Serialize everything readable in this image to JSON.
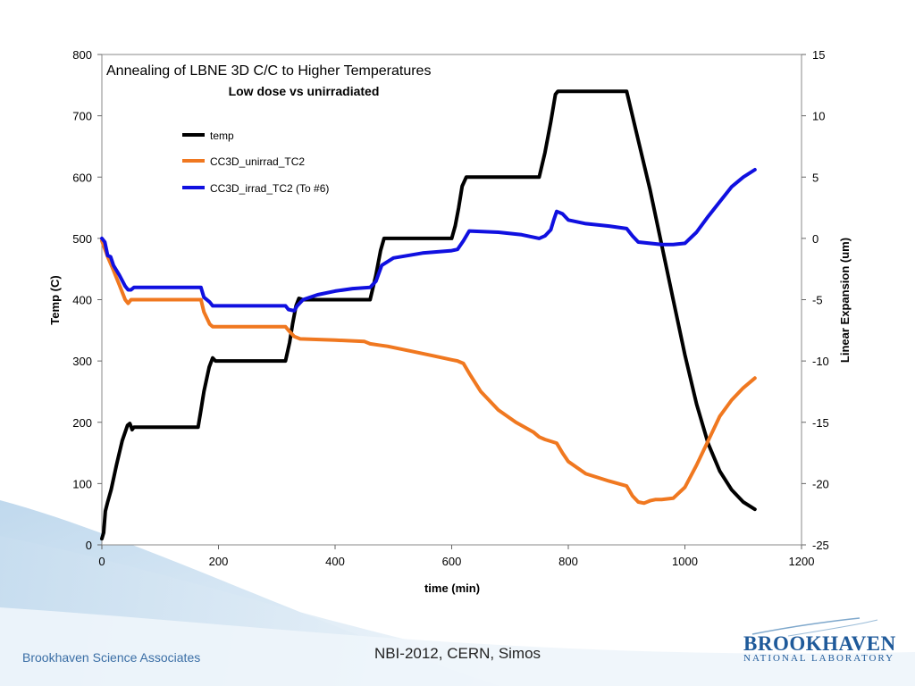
{
  "footer": {
    "left_text": "Brookhaven Science Associates",
    "center_text": "NBI-2012, CERN, Simos",
    "logo_main": "BROOKHAVEN",
    "logo_sub": "NATIONAL LABORATORY"
  },
  "colors": {
    "background_swoosh": "#cfe3f2",
    "temp": "#000000",
    "unirrad": "#f07820",
    "irrad": "#1010e0"
  },
  "chart_data": {
    "type": "line",
    "title": "Annealing of LBNE 3D C/C to Higher Temperatures",
    "subtitle": "Low dose vs unirradiated",
    "xlabel": "time (min)",
    "ylabel": "Temp (C)",
    "y2label": "Linear Expansion (um)",
    "xlim": [
      0,
      1200
    ],
    "ylim": [
      0,
      800
    ],
    "y2lim": [
      -25,
      15
    ],
    "xticks": [
      0,
      200,
      400,
      600,
      800,
      1000,
      1200
    ],
    "yticks": [
      0,
      100,
      200,
      300,
      400,
      500,
      600,
      700,
      800
    ],
    "y2ticks": [
      -25,
      -20,
      -15,
      -10,
      -5,
      0,
      5,
      10,
      15
    ],
    "legend_position": "top-left",
    "grid": false,
    "series": [
      {
        "name": "temp",
        "axis": "left",
        "color": "#000000",
        "x": [
          0,
          3,
          6,
          10,
          16,
          25,
          35,
          44,
          48,
          52,
          55,
          60,
          80,
          120,
          150,
          165,
          170,
          175,
          184,
          190,
          195,
          200,
          250,
          300,
          315,
          322,
          327,
          333,
          338,
          345,
          360,
          400,
          440,
          460,
          470,
          478,
          484,
          490,
          520,
          560,
          600,
          606,
          612,
          618,
          625,
          630,
          680,
          720,
          750,
          760,
          770,
          778,
          782,
          790,
          830,
          870,
          900,
          920,
          940,
          960,
          980,
          1000,
          1020,
          1040,
          1060,
          1080,
          1100,
          1120
        ],
        "y": [
          10,
          20,
          55,
          70,
          90,
          130,
          170,
          195,
          198,
          188,
          192,
          192,
          192,
          192,
          192,
          192,
          220,
          250,
          290,
          305,
          300,
          300,
          300,
          300,
          300,
          330,
          360,
          390,
          402,
          400,
          400,
          400,
          400,
          400,
          440,
          480,
          500,
          500,
          500,
          500,
          500,
          520,
          550,
          585,
          600,
          600,
          600,
          600,
          600,
          640,
          690,
          735,
          740,
          740,
          740,
          740,
          740,
          660,
          580,
          490,
          400,
          310,
          230,
          165,
          120,
          90,
          70,
          58
        ]
      },
      {
        "name": "CC3D_unirrad_TC2",
        "axis": "right",
        "color": "#f07820",
        "x": [
          0,
          10,
          20,
          30,
          40,
          45,
          50,
          55,
          60,
          80,
          120,
          150,
          170,
          175,
          185,
          190,
          200,
          250,
          300,
          315,
          320,
          330,
          340,
          400,
          450,
          460,
          475,
          490,
          530,
          570,
          600,
          610,
          620,
          630,
          650,
          680,
          710,
          740,
          750,
          760,
          780,
          790,
          800,
          830,
          870,
          900,
          910,
          920,
          930,
          940,
          950,
          960,
          980,
          1000,
          1020,
          1040,
          1060,
          1080,
          1100,
          1120
        ],
        "y": [
          -0.2,
          -1.5,
          -2.6,
          -3.8,
          -5.0,
          -5.3,
          -5.0,
          -5.0,
          -5.0,
          -5.0,
          -5.0,
          -5.0,
          -5.0,
          -6.0,
          -7.0,
          -7.2,
          -7.2,
          -7.2,
          -7.2,
          -7.2,
          -7.5,
          -8.0,
          -8.2,
          -8.3,
          -8.4,
          -8.6,
          -8.7,
          -8.8,
          -9.2,
          -9.6,
          -9.9,
          -10.0,
          -10.2,
          -11.0,
          -12.5,
          -14.0,
          -15.0,
          -15.8,
          -16.2,
          -16.4,
          -16.7,
          -17.5,
          -18.2,
          -19.2,
          -19.8,
          -20.2,
          -21.0,
          -21.5,
          -21.6,
          -21.4,
          -21.3,
          -21.3,
          -21.2,
          -20.3,
          -18.5,
          -16.5,
          -14.5,
          -13.2,
          -12.2,
          -11.4
        ]
      },
      {
        "name": "CC3D_irrad_TC2 (To #6)",
        "axis": "right",
        "color": "#1010e0",
        "x": [
          0,
          5,
          10,
          15,
          20,
          30,
          40,
          45,
          50,
          55,
          60,
          100,
          150,
          170,
          175,
          185,
          190,
          200,
          250,
          300,
          315,
          320,
          330,
          335,
          345,
          370,
          400,
          430,
          460,
          470,
          480,
          500,
          550,
          600,
          610,
          620,
          630,
          680,
          720,
          750,
          760,
          770,
          775,
          780,
          790,
          800,
          830,
          870,
          900,
          910,
          920,
          940,
          960,
          980,
          1000,
          1020,
          1040,
          1060,
          1080,
          1100,
          1120
        ],
        "y": [
          0.0,
          -0.3,
          -1.4,
          -1.5,
          -2.2,
          -3.0,
          -3.9,
          -4.2,
          -4.2,
          -4.0,
          -4.0,
          -4.0,
          -4.0,
          -4.0,
          -4.8,
          -5.2,
          -5.5,
          -5.5,
          -5.5,
          -5.5,
          -5.5,
          -5.8,
          -5.9,
          -5.5,
          -5.0,
          -4.6,
          -4.3,
          -4.1,
          -4.0,
          -3.5,
          -2.2,
          -1.6,
          -1.2,
          -1.0,
          -0.9,
          -0.2,
          0.6,
          0.5,
          0.3,
          0.0,
          0.2,
          0.7,
          1.5,
          2.2,
          2.0,
          1.5,
          1.2,
          1.0,
          0.8,
          0.2,
          -0.3,
          -0.4,
          -0.5,
          -0.5,
          -0.4,
          0.5,
          1.8,
          3.0,
          4.2,
          5.0,
          5.6
        ]
      }
    ]
  }
}
